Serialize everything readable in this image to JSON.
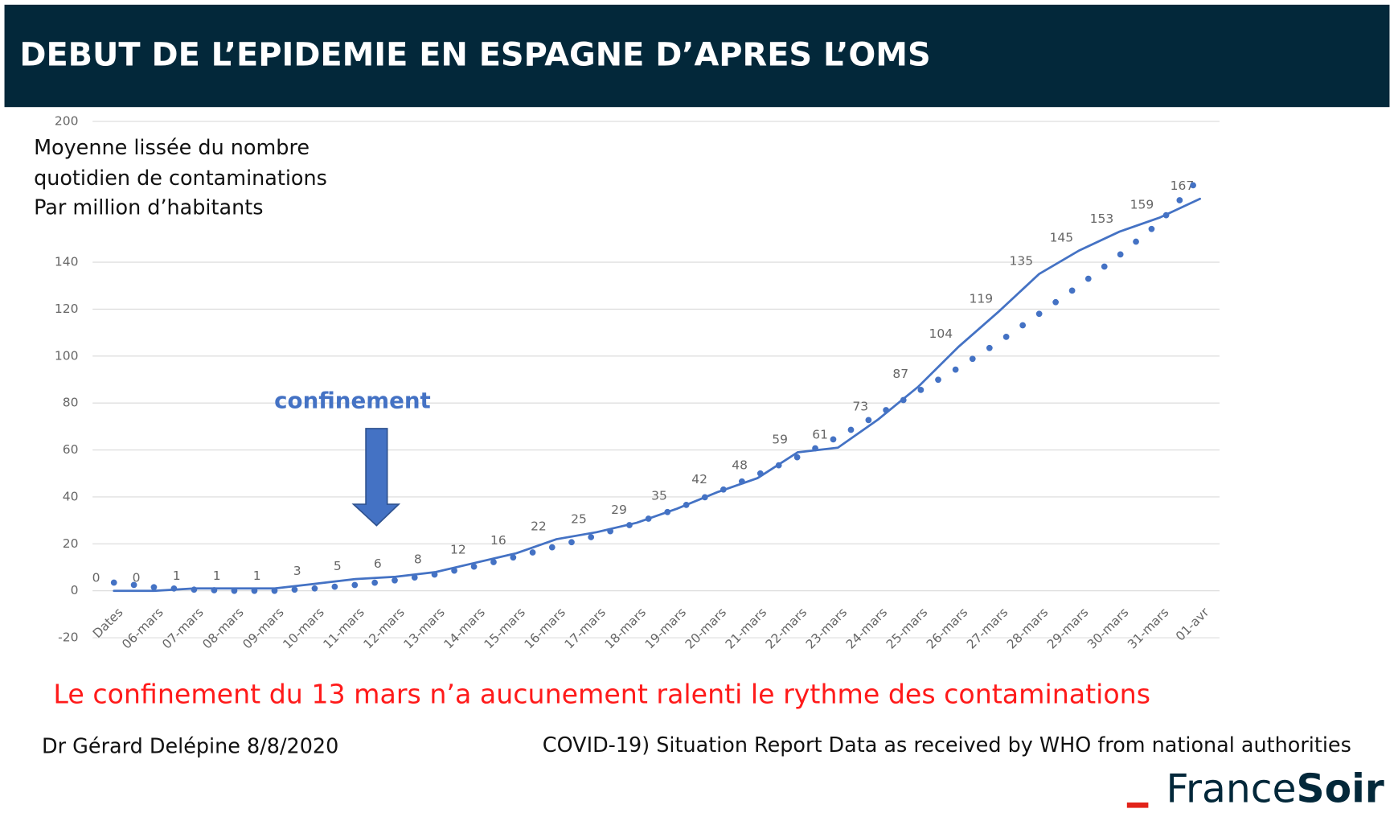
{
  "chart_data": {
    "type": "line",
    "title": "DEBUT DE L’EPIDEMIE EN ESPAGNE D’APRES L’OMS",
    "y_axis_label": [
      "Moyenne lissée du nombre",
      "quotidien de contaminations",
      "Par million d’habitants"
    ],
    "annotation": "confinement",
    "conclusion": "Le confinement du 13 mars n’a aucunement ralenti le rythme des contaminations",
    "author": "Dr Gérard Delépine 8/8/2020",
    "source": "COVID-19)  Situation Report Data as received by WHO from national authorities",
    "logo": {
      "light": "France",
      "bold": "Soir"
    },
    "categories": [
      "Dates",
      "06-mars",
      "07-mars",
      "08-mars",
      "09-mars",
      "10-mars",
      "11-mars",
      "12-mars",
      "13-mars",
      "14-mars",
      "15-mars",
      "16-mars",
      "17-mars",
      "18-mars",
      "19-mars",
      "20-mars",
      "21-mars",
      "22-mars",
      "23-mars",
      "24-mars",
      "25-mars",
      "26-mars",
      "27-mars",
      "28-mars",
      "29-mars",
      "30-mars",
      "31-mars",
      "01-avr"
    ],
    "series": [
      {
        "color": "#4472c4",
        "style": "solid",
        "data_labels": true,
        "values": [
          0,
          0,
          1,
          1,
          1,
          3,
          5,
          6,
          8,
          12,
          16,
          22,
          25,
          29,
          35,
          42,
          48,
          59,
          61,
          73,
          87,
          104,
          119,
          135,
          145,
          153,
          159,
          167
        ]
      },
      {
        "color": "#4472c4",
        "style": "dotted",
        "data_labels": false,
        "values": [
          3.5,
          1.5,
          0.5,
          0,
          0,
          1,
          2.5,
          4.5,
          7,
          10.5,
          14.5,
          19,
          23.5,
          29,
          35,
          42,
          49.5,
          57,
          65.5,
          75,
          85,
          95,
          106,
          118,
          130,
          143,
          157,
          176
        ]
      }
    ],
    "ylim": [
      -20,
      200
    ],
    "yticks": [
      -20,
      0,
      20,
      40,
      60,
      80,
      100,
      120,
      140,
      200
    ],
    "grid": true
  }
}
